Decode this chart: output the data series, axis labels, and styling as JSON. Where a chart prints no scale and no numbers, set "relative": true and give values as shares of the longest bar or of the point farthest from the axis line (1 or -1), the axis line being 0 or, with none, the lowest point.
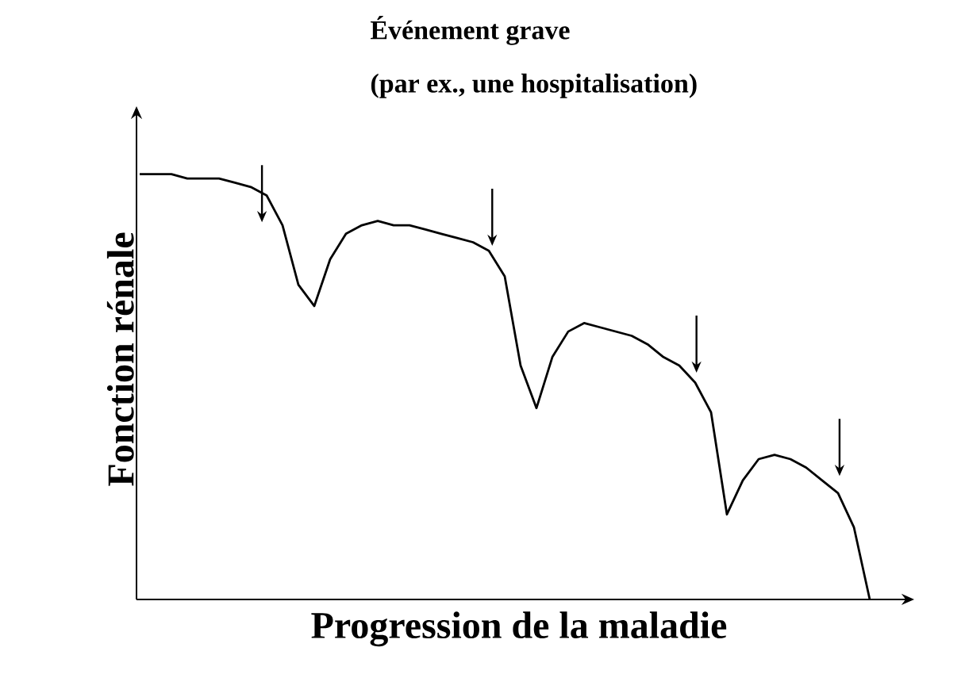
{
  "chart_data": {
    "type": "line",
    "relative": true,
    "xlabel": "Progression de la maladie",
    "ylabel": "Fonction rénale",
    "tick_labels": false,
    "categories": [
      null,
      null,
      null,
      null,
      null,
      null,
      null,
      null,
      null,
      null,
      null,
      null,
      null,
      null,
      null,
      null,
      null,
      null,
      null,
      null,
      null,
      null,
      null,
      null,
      null,
      null,
      null,
      null,
      null,
      null,
      null,
      null,
      null,
      null,
      null,
      null,
      null,
      null,
      null,
      null,
      null,
      null,
      null,
      null,
      null,
      null,
      null
    ],
    "series": [
      {
        "color": "#000000",
        "values": [
          1.0,
          1.0,
          1.0,
          0.99,
          0.99,
          0.99,
          0.98,
          0.97,
          0.95,
          0.88,
          0.74,
          0.69,
          0.8,
          0.86,
          0.88,
          0.89,
          0.88,
          0.88,
          0.87,
          0.86,
          0.85,
          0.84,
          0.82,
          0.76,
          0.55,
          0.45,
          0.57,
          0.63,
          0.65,
          0.64,
          0.63,
          0.62,
          0.6,
          0.57,
          0.55,
          0.51,
          0.44,
          0.2,
          0.28,
          0.33,
          0.34,
          0.33,
          0.31,
          0.28,
          0.25,
          0.17,
          0.0
        ]
      }
    ],
    "annotations": [
      "Événement grave",
      "(par ex., une hospitalisation)"
    ]
  }
}
